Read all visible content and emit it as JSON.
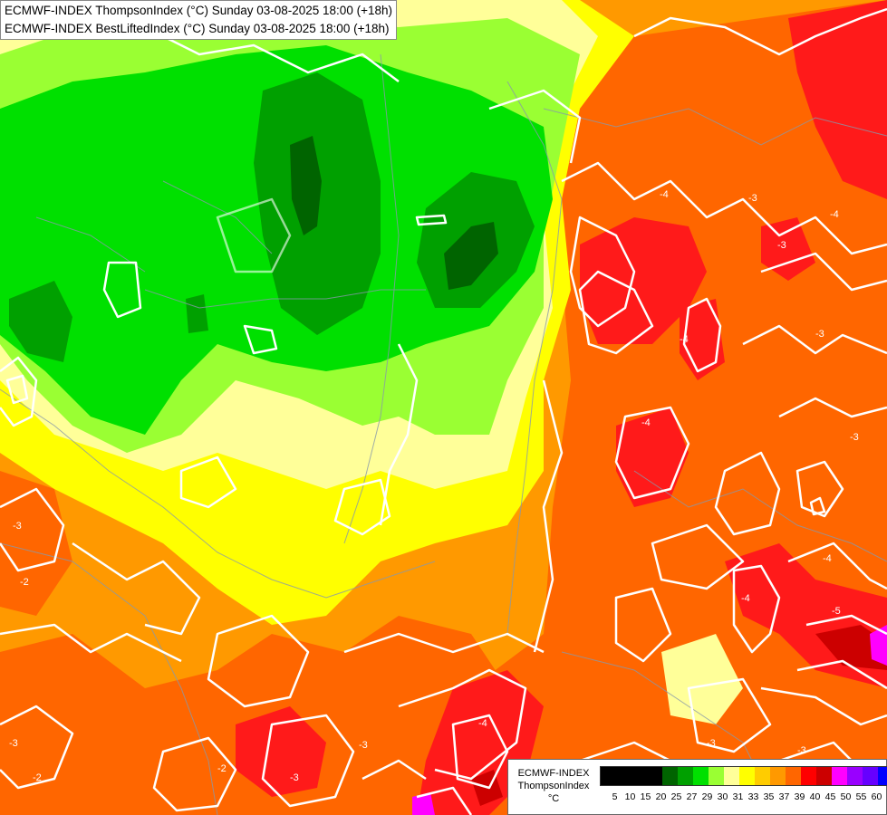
{
  "title": {
    "line1": "ECMWF-INDEX ThompsonIndex (°C) Sunday 03-08-2025 18:00 (+18h)",
    "line2": "ECMWF-INDEX BestLiftedIndex (°C) Sunday 03-08-2025 18:00 (+18h)"
  },
  "legend": {
    "name": "ECMWF-INDEX",
    "field": "ThompsonIndex",
    "unit": "°C",
    "ticks": [
      "5",
      "10",
      "15",
      "20",
      "25",
      "27",
      "29",
      "30",
      "31",
      "33",
      "35",
      "37",
      "39",
      "40",
      "45",
      "50",
      "55",
      "60"
    ],
    "colors": [
      "#000000",
      "#000000",
      "#000000",
      "#000000",
      "#006400",
      "#00a000",
      "#00e000",
      "#9aff33",
      "#ffff99",
      "#ffff00",
      "#ffcc00",
      "#ff9900",
      "#ff6600",
      "#ff0000",
      "#cc0000",
      "#ff00ff",
      "#9900ff",
      "#6600ff",
      "#0000ff"
    ]
  },
  "contour_labels": [
    "-4",
    "-3",
    "-3",
    "-3",
    "-2",
    "-4",
    "-4",
    "-3",
    "-4",
    "-5",
    "-4",
    "-4",
    "-3",
    "-3",
    "-2",
    "-3",
    "-3",
    "-2",
    "-3",
    "-3",
    "-4"
  ],
  "colors": {
    "orange": "#ff9900",
    "dark_orange": "#ff6600",
    "red": "#ff1a1a",
    "dark_red": "#cc0000",
    "magenta": "#ff00ff",
    "yellow": "#ffff00",
    "light_yellow": "#ffff99",
    "lime": "#9aff33",
    "green": "#00e000",
    "mid_green": "#00a000",
    "dark_green": "#006400",
    "contour": "#ffffff",
    "border": "#8899aa"
  }
}
